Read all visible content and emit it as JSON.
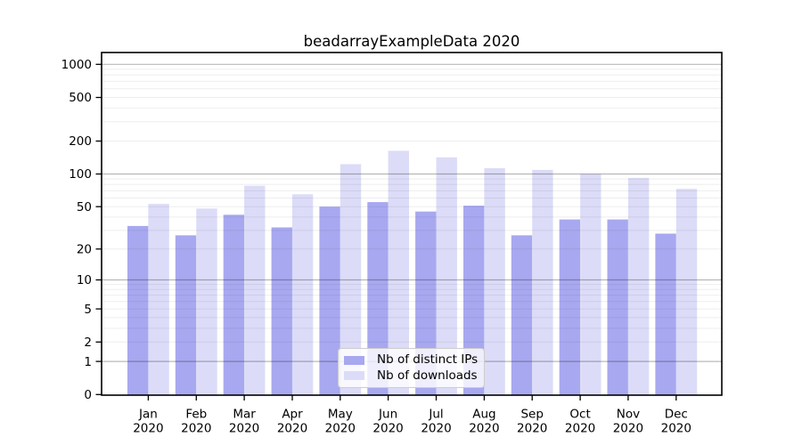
{
  "chart_data": {
    "type": "bar",
    "title": "beadarrayExampleData 2020",
    "categories": [
      "Jan 2020",
      "Feb 2020",
      "Mar 2020",
      "Apr 2020",
      "May 2020",
      "Jun 2020",
      "Jul 2020",
      "Aug 2020",
      "Sep 2020",
      "Oct 2020",
      "Nov 2020",
      "Dec 2020"
    ],
    "series": [
      {
        "name": "Nb of distinct IPs",
        "color": "#a8a8f0",
        "values": [
          33,
          27,
          42,
          32,
          50,
          55,
          45,
          51,
          27,
          38,
          38,
          28
        ]
      },
      {
        "name": "Nb of downloads",
        "color": "#dcdcf8",
        "values": [
          53,
          48,
          78,
          65,
          123,
          163,
          142,
          113,
          109,
          100,
          92,
          73
        ]
      }
    ],
    "y_axis": {
      "scale": "log1p",
      "tick_values": [
        0,
        1,
        2,
        5,
        10,
        20,
        50,
        100,
        200,
        500,
        1000
      ],
      "tick_labels": [
        "0",
        "1",
        "2",
        "5",
        "10",
        "20",
        "50",
        "100",
        "200",
        "500",
        "1000"
      ],
      "top_value": 1280
    },
    "gridlines": {
      "major": [
        1,
        10,
        100,
        1000
      ],
      "minor": [
        2,
        3,
        4,
        5,
        6,
        7,
        8,
        9,
        20,
        30,
        40,
        50,
        60,
        70,
        80,
        90,
        200,
        300,
        400,
        500,
        600,
        700,
        800,
        900
      ],
      "major_color": "rgba(0,0,0,0.28)",
      "minor_color": "rgba(0,0,0,0.07)"
    },
    "legend_position": "lower center",
    "grid": "on",
    "background": "#ffffff",
    "axis_color": "#000000"
  }
}
